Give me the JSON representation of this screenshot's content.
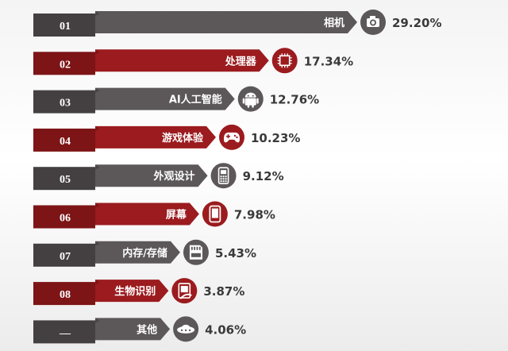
{
  "chart_data": {
    "type": "bar",
    "orientation": "horizontal",
    "categories": [
      "相机",
      "处理器",
      "AI人工智能",
      "游戏体验",
      "外观设计",
      "屏幕",
      "内存/存储",
      "生物识别",
      "其他"
    ],
    "ranks": [
      "01",
      "02",
      "03",
      "04",
      "05",
      "06",
      "07",
      "08",
      "—"
    ],
    "values": [
      29.2,
      17.34,
      12.76,
      10.23,
      9.12,
      7.98,
      5.43,
      3.87,
      4.06
    ],
    "value_labels": [
      "29.20%",
      "17.34%",
      "12.76%",
      "10.23%",
      "9.12%",
      "7.98%",
      "5.43%",
      "3.87%",
      "4.06%"
    ],
    "icons": [
      "camera-icon",
      "chip-icon",
      "android-icon",
      "gamepad-icon",
      "phone-design-icon",
      "screen-icon",
      "memory-card-icon",
      "fingerprint-icon",
      "other-icon"
    ],
    "unit": "%",
    "xlim": [
      0,
      29.2
    ]
  },
  "colors": {
    "gray": "#5c5758",
    "red": "#9b1b1e",
    "red_dark": "#7d1416",
    "text_dark": "#3a3a3a",
    "white": "#ffffff"
  }
}
